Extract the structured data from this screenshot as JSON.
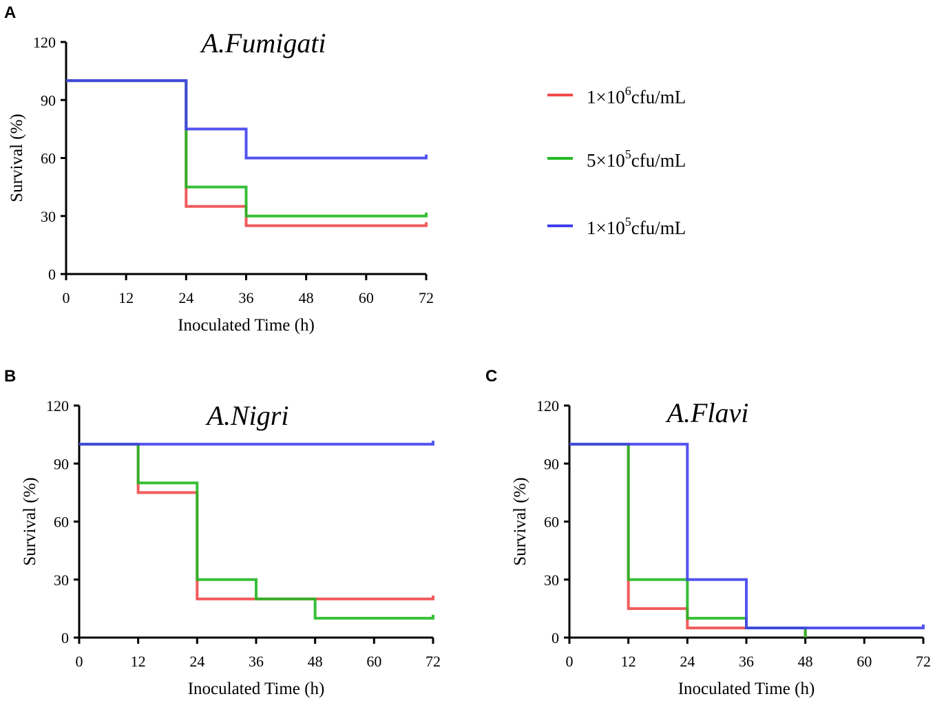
{
  "figure": {
    "legend": [
      {
        "base": "1×10",
        "exp": "6",
        "unit": "cfu/mL",
        "color": "#f04a4a"
      },
      {
        "base": "5×10",
        "exp": "5",
        "unit": "cfu/mL",
        "color": "#22b822"
      },
      {
        "base": "1×10",
        "exp": "5",
        "unit": "cfu/mL",
        "color": "#4040ee"
      }
    ]
  },
  "chart_data": [
    {
      "panel": "A",
      "type": "line",
      "title": "A.Fumigati",
      "xlabel": "Inoculated Time (h)",
      "ylabel": "Survival (%)",
      "xlim": [
        0,
        72
      ],
      "ylim": [
        0,
        120
      ],
      "xticks": [
        0,
        12,
        24,
        36,
        48,
        60,
        72
      ],
      "yticks": [
        0,
        30,
        60,
        90,
        120
      ],
      "series": [
        {
          "name": "1×10^6cfu/mL",
          "x": [
            0,
            24,
            36,
            72
          ],
          "y": [
            100,
            35,
            25,
            25
          ]
        },
        {
          "name": "5×10^5cfu/mL",
          "x": [
            0,
            24,
            36,
            72
          ],
          "y": [
            100,
            45,
            30,
            30
          ]
        },
        {
          "name": "1×10^5cfu/mL",
          "x": [
            0,
            24,
            36,
            72
          ],
          "y": [
            100,
            75,
            60,
            60
          ]
        }
      ]
    },
    {
      "panel": "B",
      "type": "line",
      "title": "A.Nigri",
      "xlabel": "Inoculated Time (h)",
      "ylabel": "Survival (%)",
      "xlim": [
        0,
        72
      ],
      "ylim": [
        0,
        120
      ],
      "xticks": [
        0,
        12,
        24,
        36,
        48,
        60,
        72
      ],
      "yticks": [
        0,
        30,
        60,
        90,
        120
      ],
      "series": [
        {
          "name": "1×10^6cfu/mL",
          "x": [
            0,
            12,
            24,
            72
          ],
          "y": [
            100,
            75,
            20,
            20
          ]
        },
        {
          "name": "5×10^5cfu/mL",
          "x": [
            0,
            12,
            24,
            36,
            48,
            72
          ],
          "y": [
            100,
            80,
            30,
            20,
            10,
            10
          ]
        },
        {
          "name": "1×10^5cfu/mL",
          "x": [
            0,
            72
          ],
          "y": [
            100,
            100
          ]
        }
      ]
    },
    {
      "panel": "C",
      "type": "line",
      "title": "A.Flavi",
      "xlabel": "Inoculated Time (h)",
      "ylabel": "Survival (%)",
      "xlim": [
        0,
        72
      ],
      "ylim": [
        0,
        120
      ],
      "xticks": [
        0,
        12,
        24,
        36,
        48,
        60,
        72
      ],
      "yticks": [
        0,
        30,
        60,
        90,
        120
      ],
      "series": [
        {
          "name": "1×10^6cfu/mL",
          "x": [
            0,
            12,
            24,
            48
          ],
          "y": [
            100,
            15,
            5,
            0
          ]
        },
        {
          "name": "5×10^5cfu/mL",
          "x": [
            0,
            12,
            24,
            36,
            48
          ],
          "y": [
            100,
            30,
            10,
            5,
            0
          ]
        },
        {
          "name": "1×10^5cfu/mL",
          "x": [
            0,
            24,
            36,
            72
          ],
          "y": [
            100,
            30,
            5,
            5
          ]
        }
      ]
    }
  ]
}
